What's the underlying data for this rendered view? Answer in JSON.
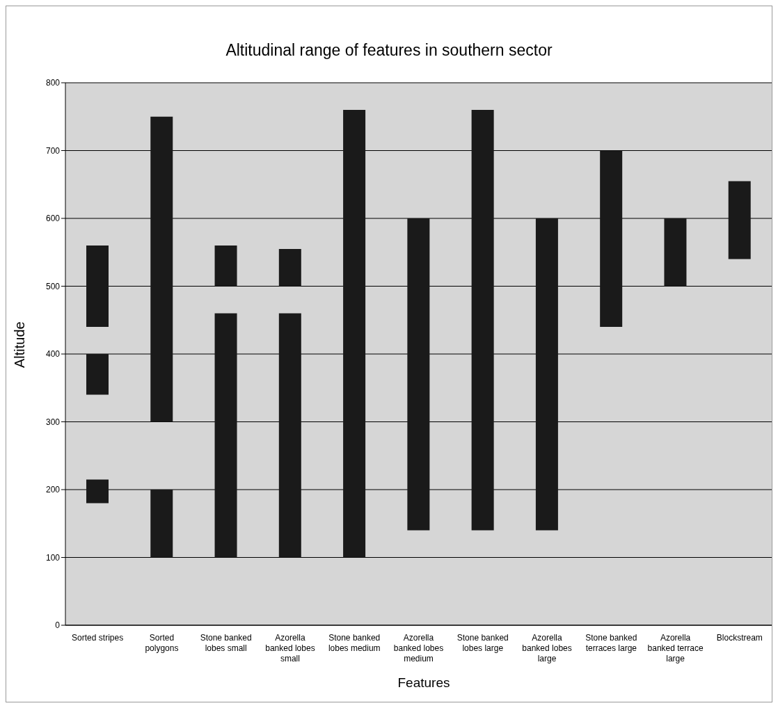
{
  "chart_data": {
    "type": "bar",
    "title": "Altitudinal range of features in southern sector",
    "xlabel": "Features",
    "ylabel": "Altitude",
    "categories": [
      "Sorted stripes",
      "Sorted polygons",
      "Stone banked lobes small",
      "Azorella banked lobes small",
      "Stone banked lobes medium",
      "Azorella banked lobes medium",
      "Stone banked lobes large",
      "Azorella banked lobes large",
      "Stone banked terraces large",
      "Azorella banked terrace large",
      "Blockstream"
    ],
    "series": [
      {
        "color": "#1a1a1a",
        "base": [
          180,
          100,
          100,
          100,
          100,
          140,
          140,
          140,
          440,
          500,
          540
        ],
        "values": [
          35,
          100,
          360,
          360,
          660,
          460,
          620,
          460,
          260,
          100,
          115
        ]
      },
      {
        "color": "#1a1a1a",
        "base": [
          340,
          300,
          500,
          500,
          null,
          null,
          null,
          null,
          null,
          null,
          null
        ],
        "values": [
          60,
          450,
          60,
          55,
          null,
          null,
          null,
          null,
          null,
          null,
          null
        ]
      },
      {
        "color": "#1a1a1a",
        "base": [
          440,
          null,
          null,
          null,
          null,
          null,
          null,
          null,
          null,
          null,
          null
        ],
        "values": [
          120,
          null,
          null,
          null,
          null,
          null,
          null,
          null,
          null,
          null,
          null
        ]
      }
    ],
    "ylim": [
      0,
      800
    ],
    "yticks": [
      0,
      100,
      200,
      300,
      400,
      500,
      600,
      700,
      800
    ],
    "grid": "y",
    "legend": false
  }
}
